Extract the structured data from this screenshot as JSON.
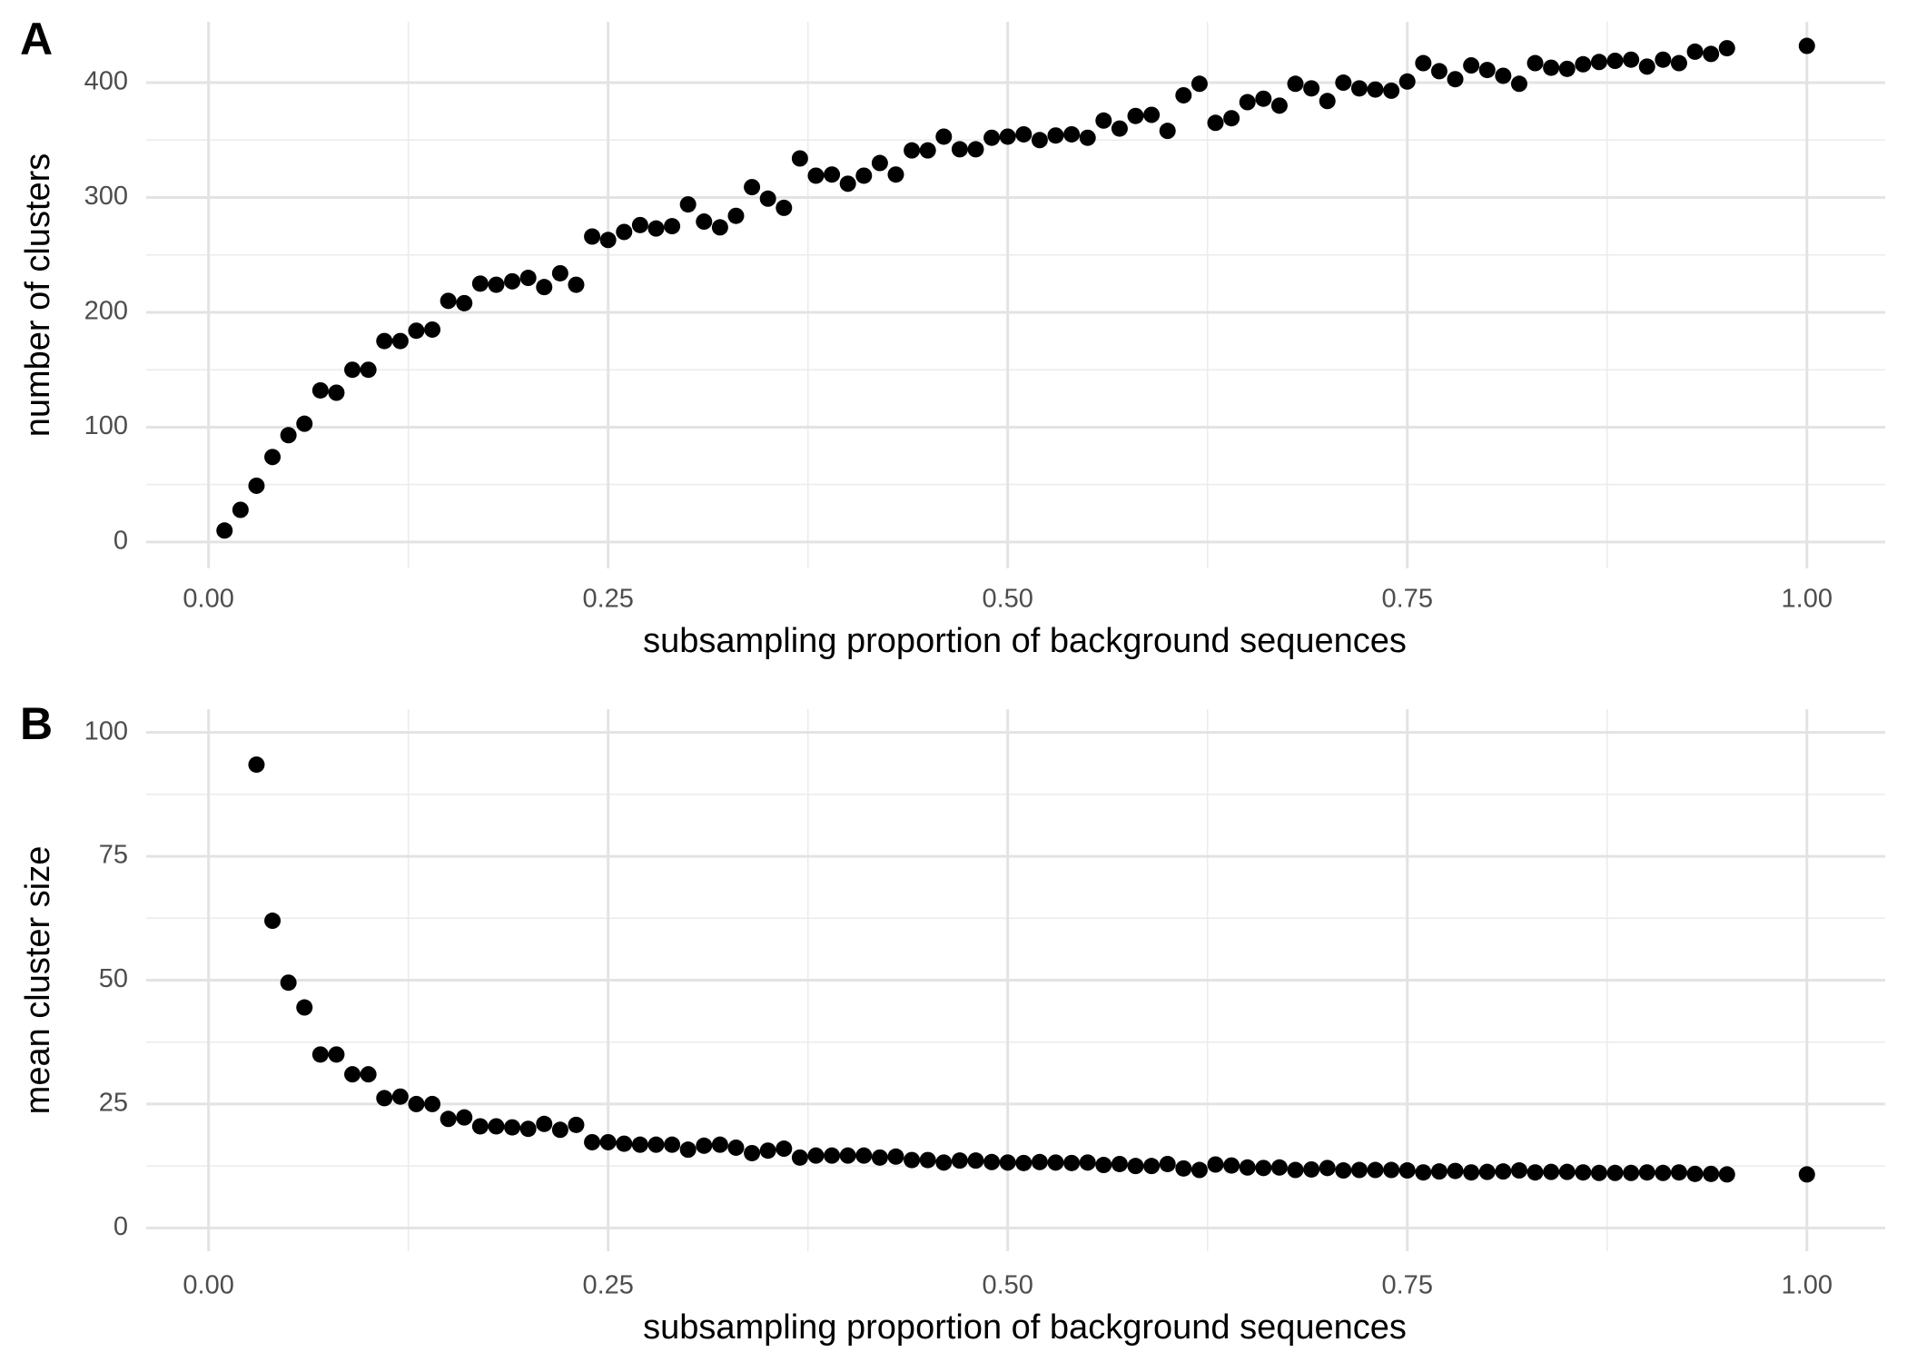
{
  "chart_data": [
    {
      "type": "scatter",
      "label": "A",
      "x_label": "subsampling proportion of background sequences",
      "y_label": "number of clusters",
      "color": "#000000",
      "grid": true,
      "minor_grid": true,
      "xlim": [
        -0.039,
        1.049
      ],
      "ylim": [
        -23,
        453
      ],
      "xticks": [
        {
          "value": 0,
          "label": "0.00"
        },
        {
          "value": 0.25,
          "label": "0.25"
        },
        {
          "value": 0.5,
          "label": "0.50"
        },
        {
          "value": 0.75,
          "label": "0.75"
        },
        {
          "value": 1,
          "label": "1.00"
        }
      ],
      "yticks": [
        0,
        100,
        200,
        300,
        400
      ],
      "x": [
        0.01,
        0.02,
        0.03,
        0.04,
        0.05,
        0.06,
        0.07,
        0.08,
        0.09,
        0.1,
        0.11,
        0.12,
        0.13,
        0.14,
        0.15,
        0.16,
        0.17,
        0.18,
        0.19,
        0.2,
        0.21,
        0.22,
        0.23,
        0.24,
        0.25,
        0.26,
        0.27,
        0.28,
        0.29,
        0.3,
        0.31,
        0.32,
        0.33,
        0.34,
        0.35,
        0.36,
        0.37,
        0.38,
        0.39,
        0.4,
        0.41,
        0.42,
        0.43,
        0.44,
        0.45,
        0.46,
        0.47,
        0.48,
        0.49,
        0.5,
        0.51,
        0.52,
        0.53,
        0.54,
        0.55,
        0.56,
        0.57,
        0.58,
        0.59,
        0.6,
        0.61,
        0.62,
        0.63,
        0.64,
        0.65,
        0.66,
        0.67,
        0.68,
        0.69,
        0.7,
        0.71,
        0.72,
        0.73,
        0.74,
        0.75,
        0.76,
        0.77,
        0.78,
        0.79,
        0.8,
        0.81,
        0.82,
        0.83,
        0.84,
        0.85,
        0.86,
        0.87,
        0.88,
        0.89,
        0.9,
        0.91,
        0.92,
        0.93,
        0.94,
        0.95,
        1
      ],
      "values": [
        10,
        28,
        49,
        74,
        93,
        103,
        132,
        130,
        150,
        150,
        175,
        175,
        184,
        185,
        210,
        208,
        225,
        224,
        227,
        230,
        222,
        234,
        224,
        266,
        263,
        270,
        276,
        273,
        275,
        294,
        279,
        274,
        284,
        309,
        299,
        291,
        334,
        319,
        320,
        312,
        319,
        330,
        320,
        341,
        341,
        353,
        342,
        342,
        352,
        353,
        355,
        350,
        354,
        355,
        352,
        367,
        360,
        371,
        372,
        358,
        389,
        399,
        365,
        369,
        383,
        386,
        380,
        399,
        395,
        384,
        400,
        395,
        394,
        393,
        401,
        417,
        410,
        403,
        415,
        411,
        406,
        399,
        417,
        413,
        412,
        416,
        418,
        419,
        420,
        414,
        420,
        417,
        427,
        425,
        430,
        432
      ]
    },
    {
      "type": "scatter",
      "label": "B",
      "x_label": "subsampling proportion of background sequences",
      "y_label": "mean cluster size",
      "color": "#000000",
      "grid": true,
      "minor_grid": true,
      "xlim": [
        -0.039,
        1.049
      ],
      "ylim": [
        -4.7,
        104.7
      ],
      "xticks": [
        {
          "value": 0,
          "label": "0.00"
        },
        {
          "value": 0.25,
          "label": "0.25"
        },
        {
          "value": 0.5,
          "label": "0.50"
        },
        {
          "value": 0.75,
          "label": "0.75"
        },
        {
          "value": 1,
          "label": "1.00"
        }
      ],
      "yticks": [
        0,
        25,
        50,
        75,
        100
      ],
      "x": [
        0.03,
        0.04,
        0.05,
        0.06,
        0.07,
        0.08,
        0.09,
        0.1,
        0.11,
        0.12,
        0.13,
        0.14,
        0.15,
        0.16,
        0.17,
        0.18,
        0.19,
        0.2,
        0.21,
        0.22,
        0.23,
        0.24,
        0.25,
        0.26,
        0.27,
        0.28,
        0.29,
        0.3,
        0.31,
        0.32,
        0.33,
        0.34,
        0.35,
        0.36,
        0.37,
        0.38,
        0.39,
        0.4,
        0.41,
        0.42,
        0.43,
        0.44,
        0.45,
        0.46,
        0.47,
        0.48,
        0.49,
        0.5,
        0.51,
        0.52,
        0.53,
        0.54,
        0.55,
        0.56,
        0.57,
        0.58,
        0.59,
        0.6,
        0.61,
        0.62,
        0.63,
        0.64,
        0.65,
        0.66,
        0.67,
        0.68,
        0.69,
        0.7,
        0.71,
        0.72,
        0.73,
        0.74,
        0.75,
        0.76,
        0.77,
        0.78,
        0.79,
        0.8,
        0.81,
        0.82,
        0.83,
        0.84,
        0.85,
        0.86,
        0.87,
        0.88,
        0.89,
        0.9,
        0.91,
        0.92,
        0.93,
        0.94,
        0.95,
        1
      ],
      "values": [
        93.5,
        62,
        49.5,
        44.5,
        35,
        35,
        31,
        31,
        26.2,
        26.5,
        25,
        25,
        22,
        22.3,
        20.5,
        20.5,
        20.3,
        20,
        21,
        19.8,
        20.8,
        17.3,
        17.3,
        17,
        16.8,
        16.8,
        16.8,
        15.8,
        16.6,
        16.8,
        16.2,
        15.1,
        15.6,
        16,
        14.2,
        14.6,
        14.6,
        14.6,
        14.6,
        14.2,
        14.4,
        13.7,
        13.7,
        13.2,
        13.6,
        13.6,
        13.3,
        13.2,
        13.1,
        13.3,
        13.2,
        13.1,
        13.2,
        12.7,
        12.9,
        12.5,
        12.5,
        12.9,
        12,
        11.7,
        12.8,
        12.6,
        12.2,
        12.1,
        12.2,
        11.7,
        11.8,
        12.1,
        11.6,
        11.7,
        11.7,
        11.7,
        11.6,
        11.2,
        11.4,
        11.5,
        11.2,
        11.3,
        11.4,
        11.6,
        11.2,
        11.3,
        11.3,
        11.2,
        11.1,
        11.1,
        11.1,
        11.2,
        11.1,
        11.2,
        10.9,
        10.9,
        10.8,
        10.8
      ]
    }
  ]
}
